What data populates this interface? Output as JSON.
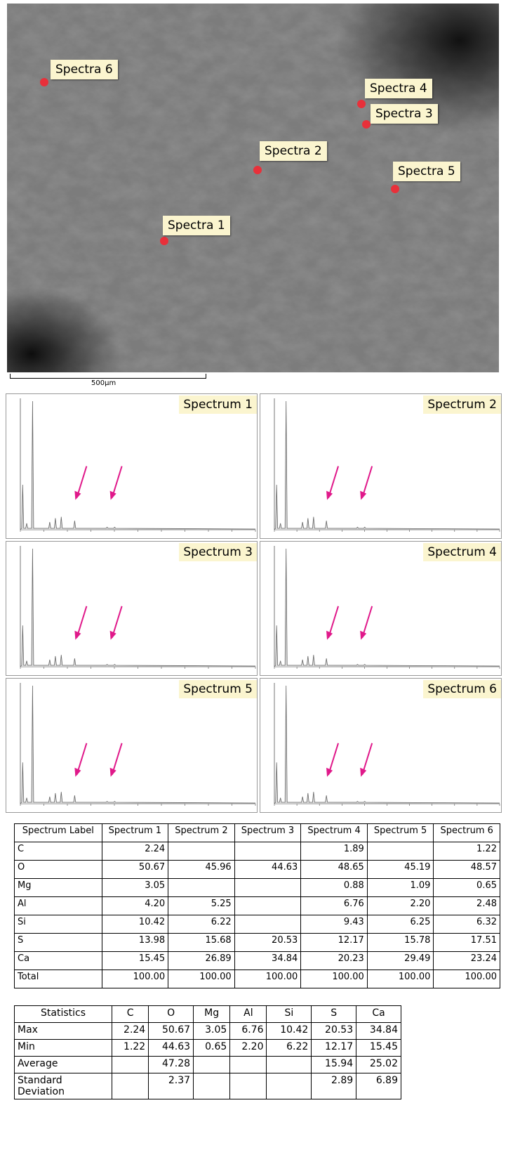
{
  "sem": {
    "markers": [
      "Spectra 6",
      "Spectra 4",
      "Spectra 3",
      "Spectra 2",
      "Spectra 5",
      "Spectra 1"
    ],
    "scale_bar": "500µm"
  },
  "spectra": [
    "Spectrum 1",
    "Spectrum 2",
    "Spectrum 3",
    "Spectrum 4",
    "Spectrum 5",
    "Spectrum 6"
  ],
  "table": {
    "header": [
      "Spectrum Label",
      "Spectrum 1",
      "Spectrum 2",
      "Spectrum 3",
      "Spectrum 4",
      "Spectrum 5",
      "Spectrum 6"
    ],
    "rows": [
      [
        "C",
        "2.24",
        null,
        null,
        "1.89",
        null,
        "1.22"
      ],
      [
        "O",
        "50.67",
        "45.96",
        "44.63",
        "48.65",
        "45.19",
        "48.57"
      ],
      [
        "Mg",
        "3.05",
        null,
        null,
        "0.88",
        "1.09",
        "0.65"
      ],
      [
        "Al",
        "4.20",
        "5.25",
        null,
        "6.76",
        "2.20",
        "2.48"
      ],
      [
        "Si",
        "10.42",
        "6.22",
        null,
        "9.43",
        "6.25",
        "6.32"
      ],
      [
        "S",
        "13.98",
        "15.68",
        "20.53",
        "12.17",
        "15.78",
        "17.51"
      ],
      [
        "Ca",
        "15.45",
        "26.89",
        "34.84",
        "20.23",
        "29.49",
        "23.24"
      ],
      [
        "Total",
        "100.00",
        "100.00",
        "100.00",
        "100.00",
        "100.00",
        "100.00"
      ]
    ]
  },
  "stats": {
    "header": [
      "Statistics",
      "C",
      "O",
      "Mg",
      "Al",
      "Si",
      "S",
      "Ca"
    ],
    "rows": [
      [
        "Max",
        "2.24",
        "50.67",
        "3.05",
        "6.76",
        "10.42",
        "20.53",
        "34.84"
      ],
      [
        "Min",
        "1.22",
        "44.63",
        "0.65",
        "2.20",
        "6.22",
        "12.17",
        "15.45"
      ],
      [
        "Average",
        null,
        "47.28",
        null,
        null,
        null,
        "15.94",
        "25.02"
      ],
      [
        "Standard Deviation",
        null,
        "2.37",
        null,
        null,
        null,
        "2.89",
        "6.89"
      ]
    ]
  }
}
